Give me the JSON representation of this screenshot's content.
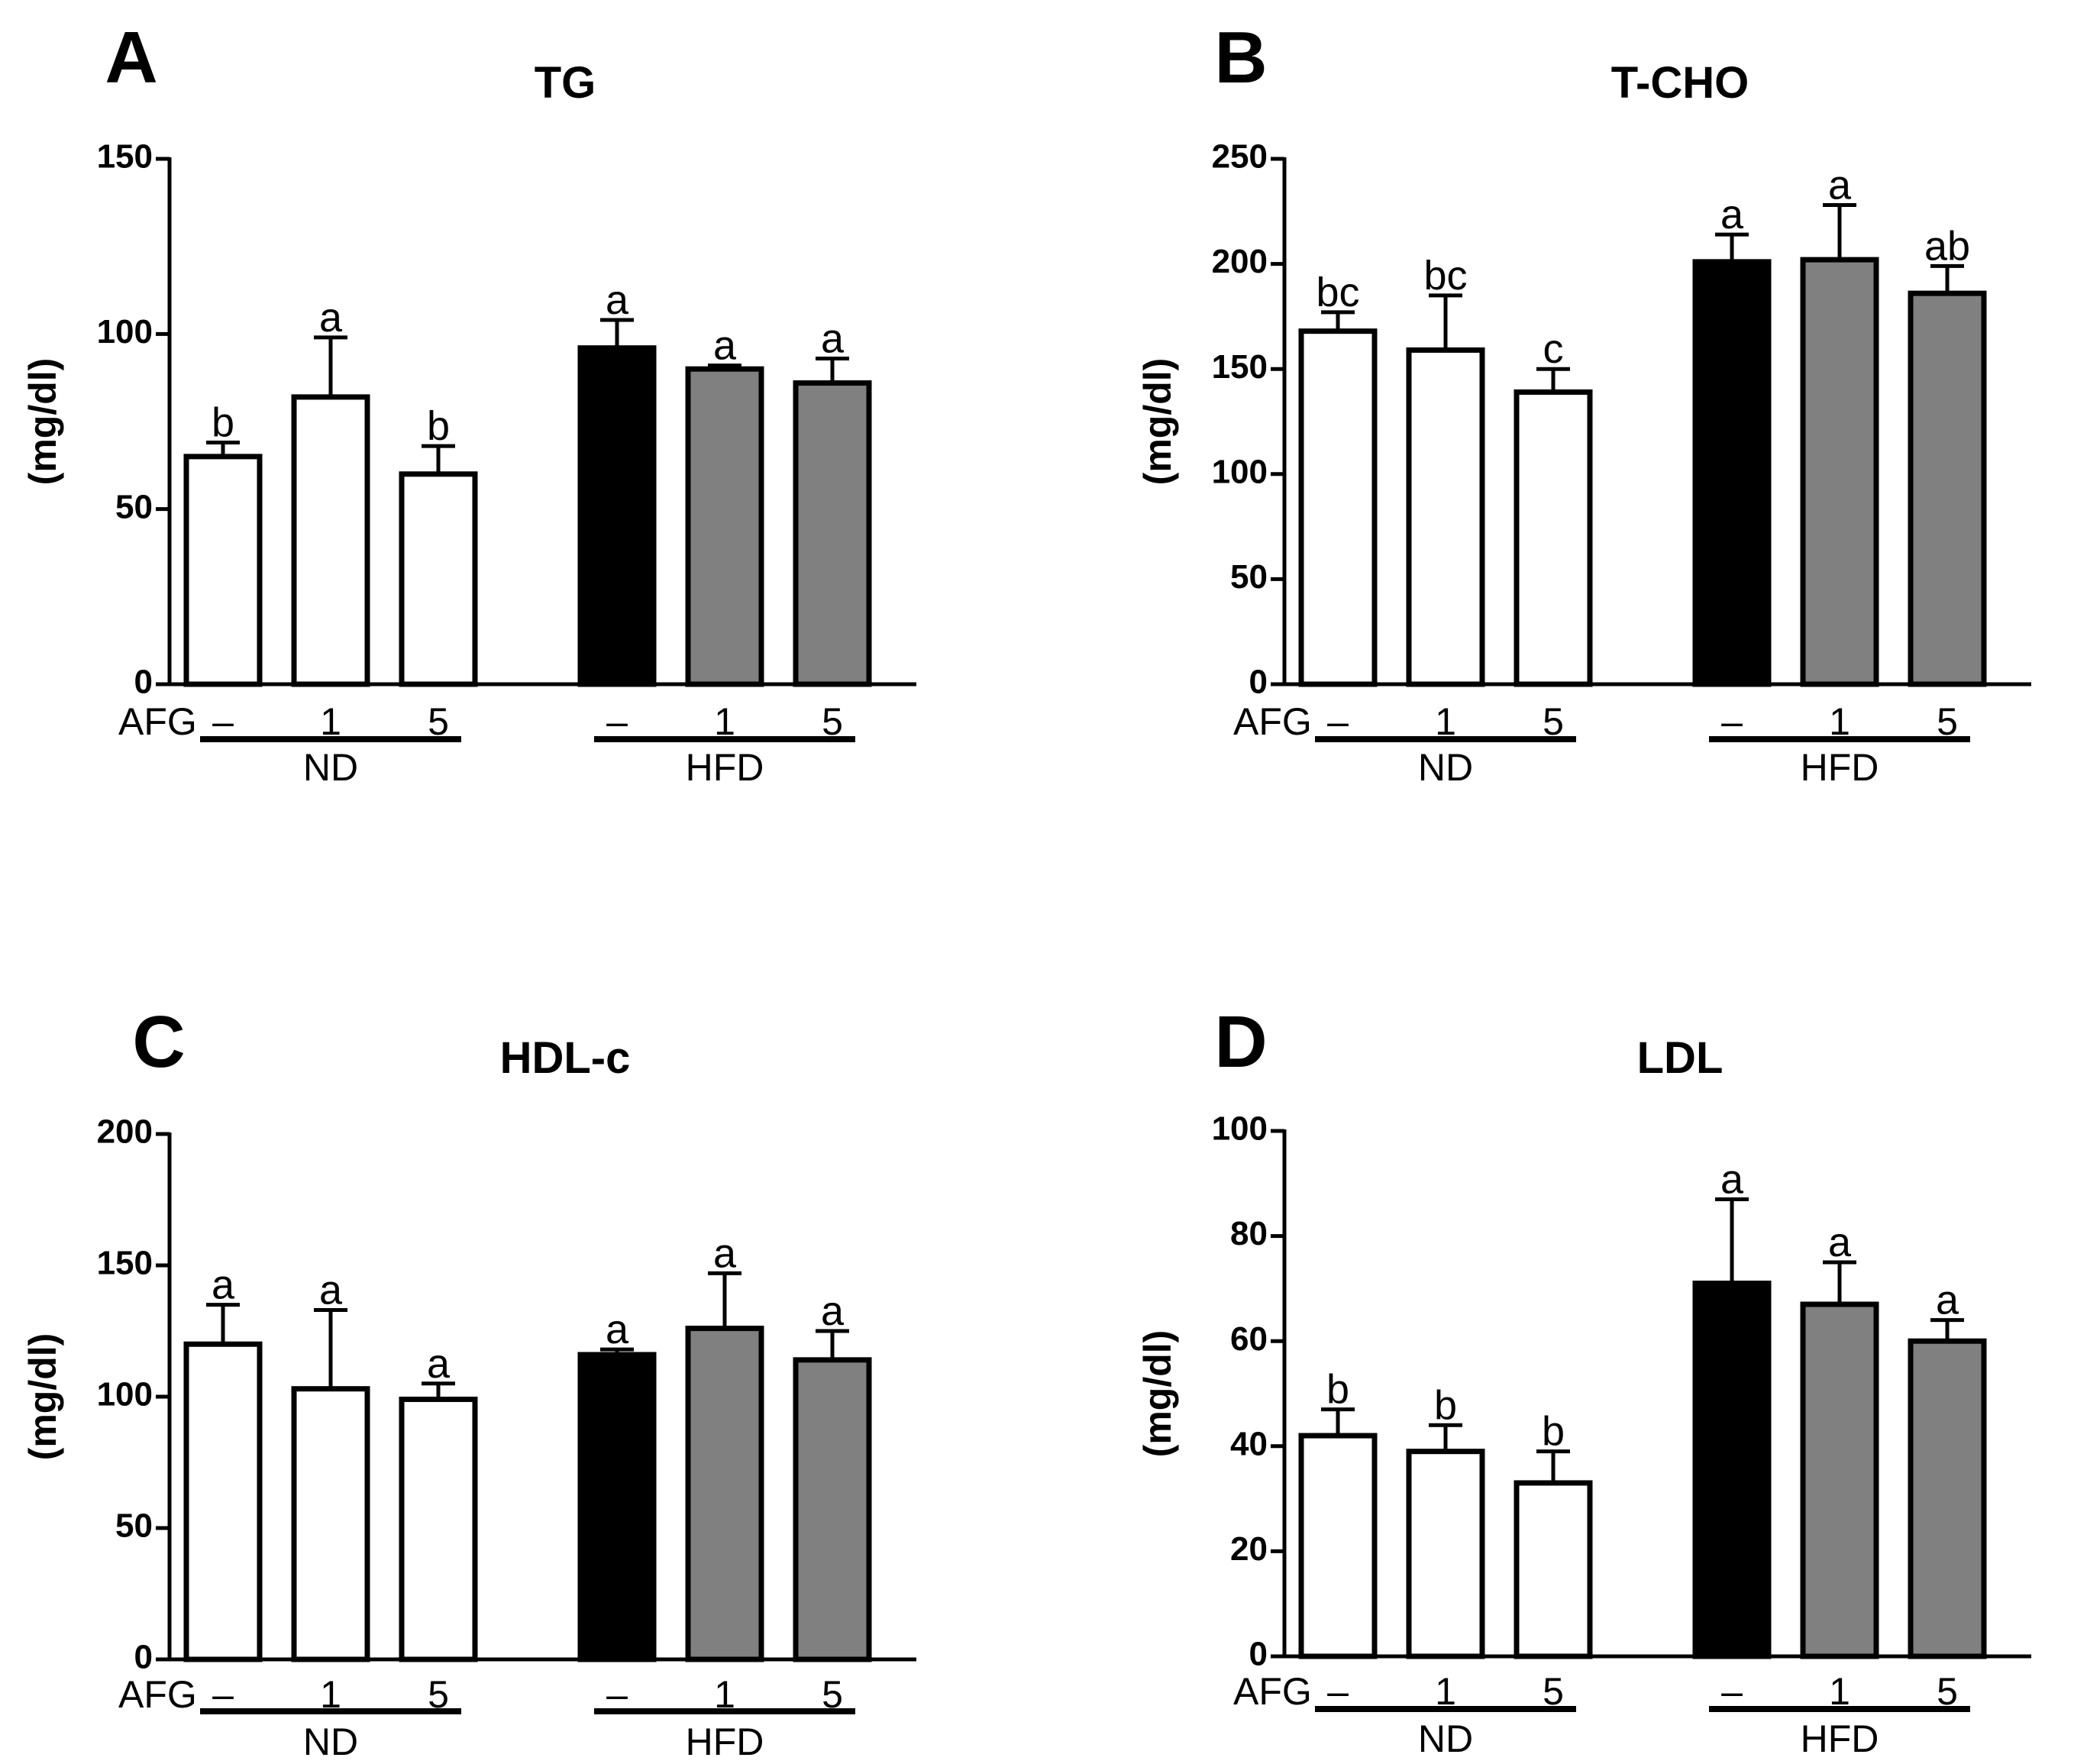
{
  "figure": {
    "colors": {
      "nd_bar": "#ffffff",
      "hfd_control_bar": "#000000",
      "hfd_afg_bar": "#808080",
      "outline": "#000000"
    },
    "group_row_label": "AFG",
    "dose_labels": [
      "–",
      "1",
      "5",
      "–",
      "1",
      "5"
    ],
    "group_labels": [
      "ND",
      "HFD"
    ]
  },
  "chart_data": [
    {
      "panel": "A",
      "title": "TG",
      "type": "bar",
      "ylabel": "(mg/dl)",
      "ylim": [
        0,
        150
      ],
      "yticks": [
        0,
        50,
        100,
        150
      ],
      "xlabel": "AFG",
      "categories": [
        "ND –",
        "ND 1",
        "ND 5",
        "HFD –",
        "HFD 1",
        "HFD 5"
      ],
      "values": [
        65,
        82,
        60,
        96,
        90,
        86
      ],
      "errors": [
        4,
        17,
        8,
        8,
        1,
        7
      ],
      "significance": [
        "b",
        "a",
        "b",
        "a",
        "a",
        "a"
      ]
    },
    {
      "panel": "B",
      "title": "T-CHO",
      "type": "bar",
      "ylabel": "(mg/dl)",
      "ylim": [
        0,
        250
      ],
      "yticks": [
        0,
        50,
        100,
        150,
        200,
        250
      ],
      "xlabel": "AFG",
      "categories": [
        "ND –",
        "ND 1",
        "ND 5",
        "HFD –",
        "HFD 1",
        "HFD 5"
      ],
      "values": [
        168,
        159,
        139,
        201,
        202,
        186
      ],
      "errors": [
        9,
        26,
        11,
        13,
        26,
        13
      ],
      "significance": [
        "bc",
        "bc",
        "c",
        "a",
        "a",
        "ab"
      ]
    },
    {
      "panel": "C",
      "title": "HDL-c",
      "type": "bar",
      "ylabel": "(mg/dl)",
      "ylim": [
        0,
        200
      ],
      "yticks": [
        0,
        50,
        100,
        150,
        200
      ],
      "xlabel": "AFG",
      "categories": [
        "ND –",
        "ND 1",
        "ND 5",
        "HFD –",
        "HFD 1",
        "HFD 5"
      ],
      "values": [
        120,
        103,
        99,
        116,
        126,
        114
      ],
      "errors": [
        15,
        30,
        6,
        2,
        21,
        11
      ],
      "significance": [
        "a",
        "a",
        "a",
        "a",
        "a",
        "a"
      ]
    },
    {
      "panel": "D",
      "title": "LDL",
      "type": "bar",
      "ylabel": "(mg/dl)",
      "ylim": [
        0,
        100
      ],
      "yticks": [
        0,
        20,
        40,
        60,
        80,
        100
      ],
      "xlabel": "AFG",
      "categories": [
        "ND –",
        "ND 1",
        "ND 5",
        "HFD –",
        "HFD 1",
        "HFD 5"
      ],
      "values": [
        42,
        39,
        33,
        71,
        67,
        60
      ],
      "errors": [
        5,
        5,
        6,
        16,
        8,
        4
      ],
      "significance": [
        "b",
        "b",
        "b",
        "a",
        "a",
        "a"
      ]
    }
  ]
}
